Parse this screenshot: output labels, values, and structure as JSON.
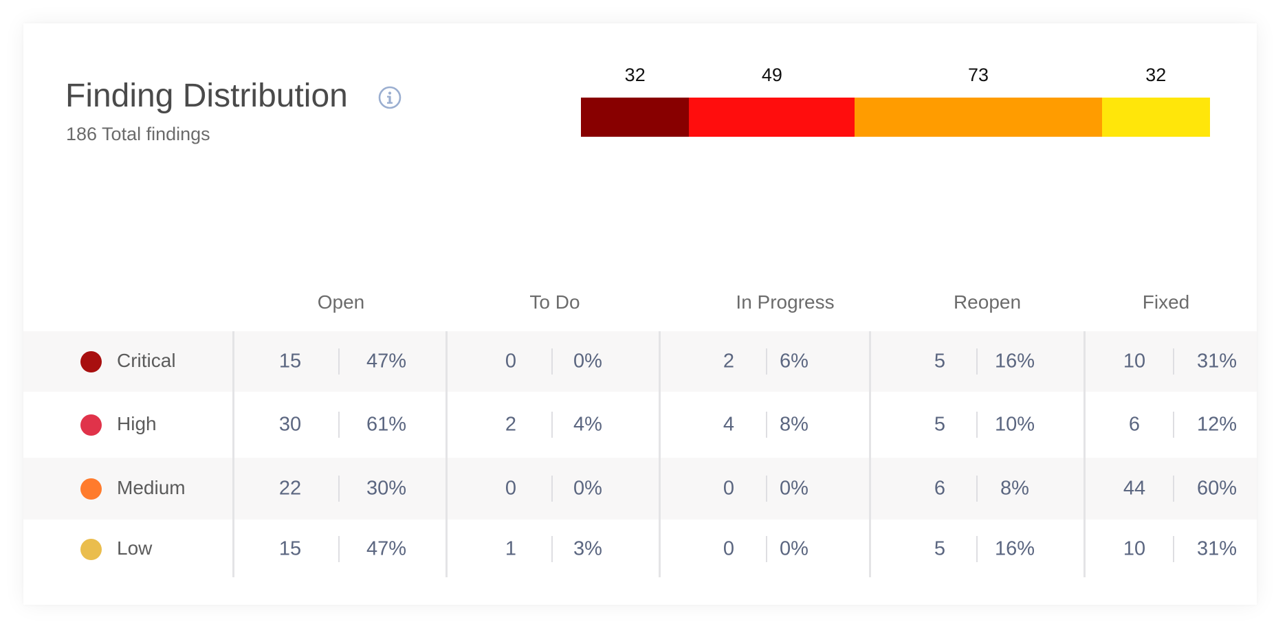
{
  "header": {
    "title": "Finding Distribution",
    "subtitle": "186 Total findings",
    "info_icon": "info-icon"
  },
  "distribution_bar": {
    "segments": [
      {
        "severity": "Critical",
        "value": 32,
        "color": "#880000"
      },
      {
        "severity": "High",
        "value": 49,
        "color": "#ff0d0d"
      },
      {
        "severity": "Medium",
        "value": 73,
        "color": "#ff9c00"
      },
      {
        "severity": "Low",
        "value": 32,
        "color": "#ffe60a"
      }
    ]
  },
  "table": {
    "columns": [
      "Open",
      "To Do",
      "In Progress",
      "Reopen",
      "Fixed"
    ],
    "rows": [
      {
        "severity": "Critical",
        "color": "#a80f0f",
        "cells": [
          {
            "count": "15",
            "pct": "47%"
          },
          {
            "count": "0",
            "pct": "0%"
          },
          {
            "count": "2",
            "pct": "6%"
          },
          {
            "count": "5",
            "pct": "16%"
          },
          {
            "count": "10",
            "pct": "31%"
          }
        ]
      },
      {
        "severity": "High",
        "color": "#e0334a",
        "cells": [
          {
            "count": "30",
            "pct": "61%"
          },
          {
            "count": "2",
            "pct": "4%"
          },
          {
            "count": "4",
            "pct": "8%"
          },
          {
            "count": "5",
            "pct": "10%"
          },
          {
            "count": "6",
            "pct": "12%"
          }
        ]
      },
      {
        "severity": "Medium",
        "color": "#ff7b2c",
        "cells": [
          {
            "count": "22",
            "pct": "30%"
          },
          {
            "count": "0",
            "pct": "0%"
          },
          {
            "count": "0",
            "pct": "0%"
          },
          {
            "count": "6",
            "pct": "8%"
          },
          {
            "count": "44",
            "pct": "60%"
          }
        ]
      },
      {
        "severity": "Low",
        "color": "#eabd4d",
        "cells": [
          {
            "count": "15",
            "pct": "47%"
          },
          {
            "count": "1",
            "pct": "3%"
          },
          {
            "count": "0",
            "pct": "0%"
          },
          {
            "count": "5",
            "pct": "16%"
          },
          {
            "count": "10",
            "pct": "31%"
          }
        ]
      }
    ]
  }
}
